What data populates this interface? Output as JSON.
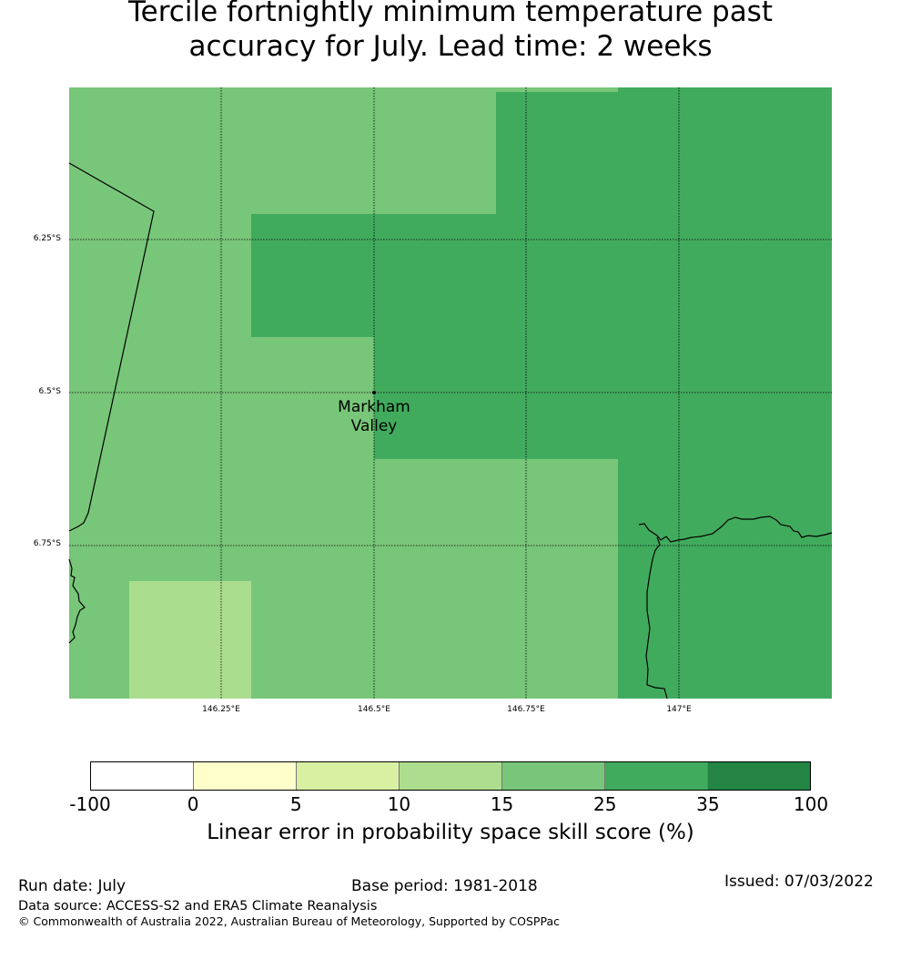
{
  "title": {
    "line1": "Tercile fortnightly minimum temperature past",
    "line2": "accuracy for July. Lead time: 2 weeks"
  },
  "map": {
    "location_name_line1": "Markham",
    "location_name_line2": "Valley",
    "lat_labels": [
      "6.25°S",
      "6.5°S",
      "6.75°S"
    ],
    "lon_labels": [
      "146.25°E",
      "146.5°E",
      "146.75°E",
      "147°E"
    ],
    "cell_colors": {
      "10_15": "#abdd8f",
      "15_25": "#78c679",
      "25_35": "#41ab5d"
    }
  },
  "colorbar": {
    "label": "Linear error in probability space skill score (%)",
    "ticks": [
      "-100",
      "0",
      "5",
      "10",
      "15",
      "25",
      "35",
      "100"
    ],
    "colors": [
      "#ffffff",
      "#ffffcc",
      "#d9f0a3",
      "#addd8e",
      "#78c679",
      "#41ab5d",
      "#238443"
    ]
  },
  "footer": {
    "run_date": "Run date: July",
    "base_period": "Base period: 1981-2018",
    "issued": "Issued: 07/03/2022",
    "data_source": "Data source: ACCESS-S2 and ERA5 Climate Reanalysis",
    "copyright": "© Commonwealth of Australia 2022, Australian Bureau of Meteorology, Supported by COSPPac"
  }
}
